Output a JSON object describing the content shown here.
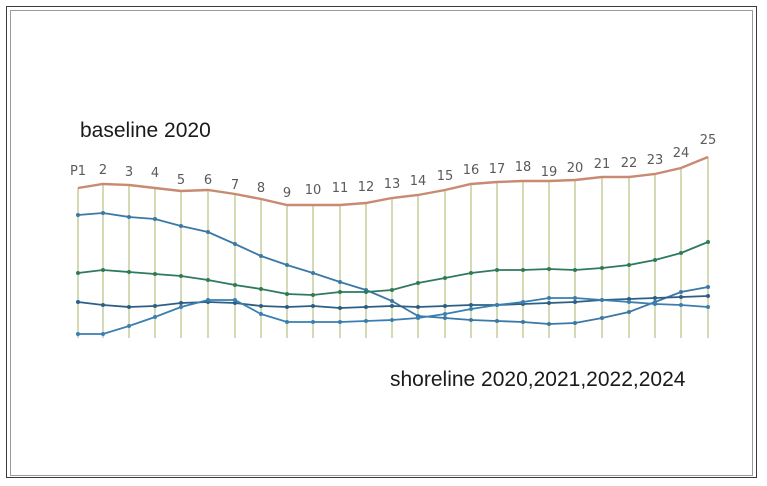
{
  "labels": {
    "baseline": "baseline 2020",
    "shorelines": "shoreline 2020,2021,2022,2024"
  },
  "transects": [
    "P1",
    "2",
    "3",
    "4",
    "5",
    "6",
    "7",
    "8",
    "9",
    "10",
    "11",
    "12",
    "13",
    "14",
    "15",
    "16",
    "17",
    "18",
    "19",
    "20",
    "21",
    "22",
    "23",
    "24",
    "25"
  ],
  "colors": {
    "baseline": "#c98a72",
    "transect": "#a9b46a",
    "shoreline_2020": "#3b78a6",
    "shoreline_2021": "#2f7a5c",
    "shoreline_2022": "#2d5f86",
    "shoreline_2024": "#3a7fb0",
    "frame": "#3a3a3a"
  }
}
